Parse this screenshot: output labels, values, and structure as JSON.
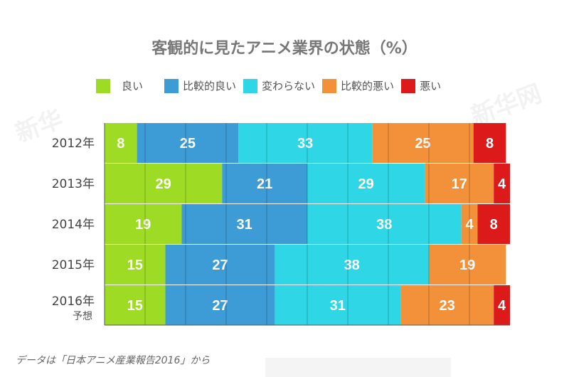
{
  "chart_data": {
    "type": "bar",
    "orientation": "horizontal-stacked-100",
    "title": "客観的に見たアニメ業界の状態（%）",
    "categories": [
      "2012年",
      "2013年",
      "2014年",
      "2015年",
      "2016年"
    ],
    "category_sublabels": [
      "",
      "",
      "",
      "",
      "予想"
    ],
    "series": [
      {
        "name": "良い",
        "color": "#9ddb24",
        "values": [
          8,
          29,
          19,
          15,
          15
        ]
      },
      {
        "name": "比較的良い",
        "color": "#3d9cd6",
        "values": [
          25,
          21,
          31,
          27,
          27
        ]
      },
      {
        "name": "変わらない",
        "color": "#2ed6e6",
        "values": [
          33,
          29,
          38,
          38,
          31
        ]
      },
      {
        "name": "比較的悪い",
        "color": "#f3913a",
        "values": [
          25,
          17,
          4,
          19,
          23
        ]
      },
      {
        "name": "悪い",
        "color": "#dc1a1a",
        "values": [
          8,
          4,
          8,
          0,
          4
        ]
      }
    ],
    "xlim": [
      0,
      100
    ],
    "grid": true,
    "legend_position": "top"
  },
  "footnote": "データは「日本アニメ産業報告2016」から",
  "watermark": "新华网"
}
